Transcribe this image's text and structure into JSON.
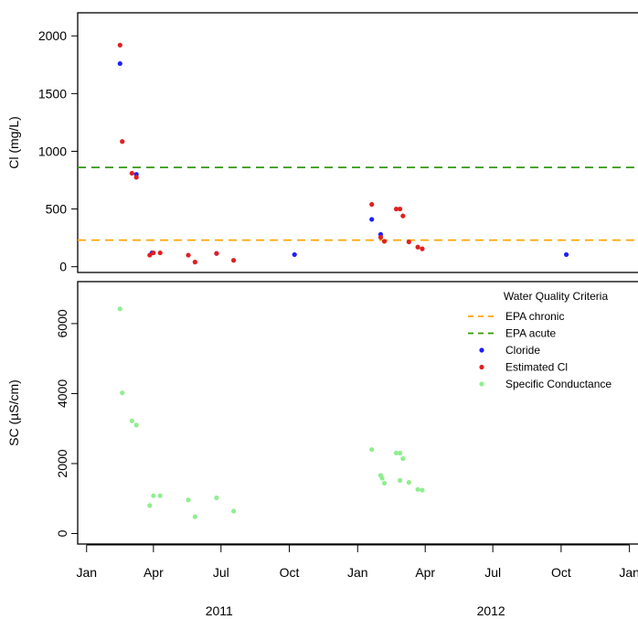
{
  "chart_data": [
    {
      "type": "scatter",
      "ylabel": "Cl (mg/L)",
      "ylim": [
        -50,
        2200
      ],
      "yticks": [
        0,
        500,
        1000,
        1500,
        2000
      ],
      "xlim": [
        "2010-12-20",
        "2013-01-15"
      ],
      "reference_lines": [
        {
          "name": "EPA chronic",
          "y": 230,
          "color": "#FFA500",
          "style": "dashed"
        },
        {
          "name": "EPA acute",
          "y": 860,
          "color": "#339900",
          "style": "dashed"
        }
      ],
      "series": [
        {
          "name": "Cloride",
          "color": "#1F1FFF",
          "points": [
            {
              "x": "2011-02-15",
              "y": 1760
            },
            {
              "x": "2011-03-09",
              "y": 800
            },
            {
              "x": "2011-03-30",
              "y": 120
            },
            {
              "x": "2011-06-25",
              "y": 115
            },
            {
              "x": "2011-10-08",
              "y": 105
            },
            {
              "x": "2012-01-20",
              "y": 410
            },
            {
              "x": "2012-02-01",
              "y": 280
            },
            {
              "x": "2012-10-08",
              "y": 105
            }
          ]
        },
        {
          "name": "Estimated Cl",
          "color": "#E02020",
          "points": [
            {
              "x": "2011-02-15",
              "y": 1920
            },
            {
              "x": "2011-02-18",
              "y": 1085
            },
            {
              "x": "2011-03-03",
              "y": 810
            },
            {
              "x": "2011-03-09",
              "y": 775
            },
            {
              "x": "2011-03-27",
              "y": 100
            },
            {
              "x": "2011-04-01",
              "y": 120
            },
            {
              "x": "2011-04-10",
              "y": 120
            },
            {
              "x": "2011-05-18",
              "y": 100
            },
            {
              "x": "2011-05-27",
              "y": 40
            },
            {
              "x": "2011-06-25",
              "y": 115
            },
            {
              "x": "2011-07-18",
              "y": 55
            },
            {
              "x": "2012-01-20",
              "y": 540
            },
            {
              "x": "2012-02-01",
              "y": 255
            },
            {
              "x": "2012-02-06",
              "y": 220
            },
            {
              "x": "2012-02-22",
              "y": 500
            },
            {
              "x": "2012-02-27",
              "y": 500
            },
            {
              "x": "2012-03-02",
              "y": 440
            },
            {
              "x": "2012-03-10",
              "y": 215
            },
            {
              "x": "2012-03-22",
              "y": 170
            },
            {
              "x": "2012-03-28",
              "y": 155
            }
          ]
        }
      ]
    },
    {
      "type": "scatter",
      "ylabel": "SC (µS/cm)",
      "ylim": [
        -300,
        7200
      ],
      "yticks": [
        0,
        2000,
        4000,
        6000
      ],
      "xlim": [
        "2010-12-20",
        "2013-01-15"
      ],
      "xticks": [
        {
          "date": "2011-01-01",
          "label": "Jan"
        },
        {
          "date": "2011-04-01",
          "label": "Apr"
        },
        {
          "date": "2011-07-01",
          "label": "Jul"
        },
        {
          "date": "2011-10-01",
          "label": "Oct"
        },
        {
          "date": "2012-01-01",
          "label": "Jan"
        },
        {
          "date": "2012-04-01",
          "label": "Apr"
        },
        {
          "date": "2012-07-01",
          "label": "Jul"
        },
        {
          "date": "2012-10-01",
          "label": "Oct"
        },
        {
          "date": "2013-01-01",
          "label": "Jan"
        }
      ],
      "year_labels": [
        {
          "date": "2011-07-01",
          "label": "2011"
        },
        {
          "date": "2012-07-01",
          "label": "2012"
        }
      ],
      "series": [
        {
          "name": "Specific Conductance",
          "color": "#90EE90",
          "points": [
            {
              "x": "2011-02-15",
              "y": 6420
            },
            {
              "x": "2011-02-18",
              "y": 4020
            },
            {
              "x": "2011-03-03",
              "y": 3220
            },
            {
              "x": "2011-03-09",
              "y": 3100
            },
            {
              "x": "2011-03-27",
              "y": 800
            },
            {
              "x": "2011-04-01",
              "y": 1080
            },
            {
              "x": "2011-04-10",
              "y": 1080
            },
            {
              "x": "2011-05-18",
              "y": 960
            },
            {
              "x": "2011-05-27",
              "y": 480
            },
            {
              "x": "2011-06-25",
              "y": 1020
            },
            {
              "x": "2011-07-18",
              "y": 640
            },
            {
              "x": "2012-01-20",
              "y": 2400
            },
            {
              "x": "2012-02-01",
              "y": 1660
            },
            {
              "x": "2012-02-03",
              "y": 1580
            },
            {
              "x": "2012-02-06",
              "y": 1440
            },
            {
              "x": "2012-02-22",
              "y": 2300
            },
            {
              "x": "2012-02-27",
              "y": 2300
            },
            {
              "x": "2012-02-27",
              "y": 1520
            },
            {
              "x": "2012-03-02",
              "y": 2140
            },
            {
              "x": "2012-03-10",
              "y": 1460
            },
            {
              "x": "2012-03-22",
              "y": 1260
            },
            {
              "x": "2012-03-28",
              "y": 1240
            }
          ]
        }
      ]
    }
  ],
  "legend": {
    "title": "Water Quality Criteria",
    "entries": [
      {
        "label": "EPA chronic",
        "kind": "line",
        "color": "#FFA500"
      },
      {
        "label": "EPA acute",
        "kind": "line",
        "color": "#339900"
      },
      {
        "label": "Cloride",
        "kind": "point",
        "color": "#1F1FFF"
      },
      {
        "label": "Estimated Cl",
        "kind": "point",
        "color": "#E02020"
      },
      {
        "label": "Specific Conductance",
        "kind": "point",
        "color": "#90EE90"
      }
    ]
  }
}
